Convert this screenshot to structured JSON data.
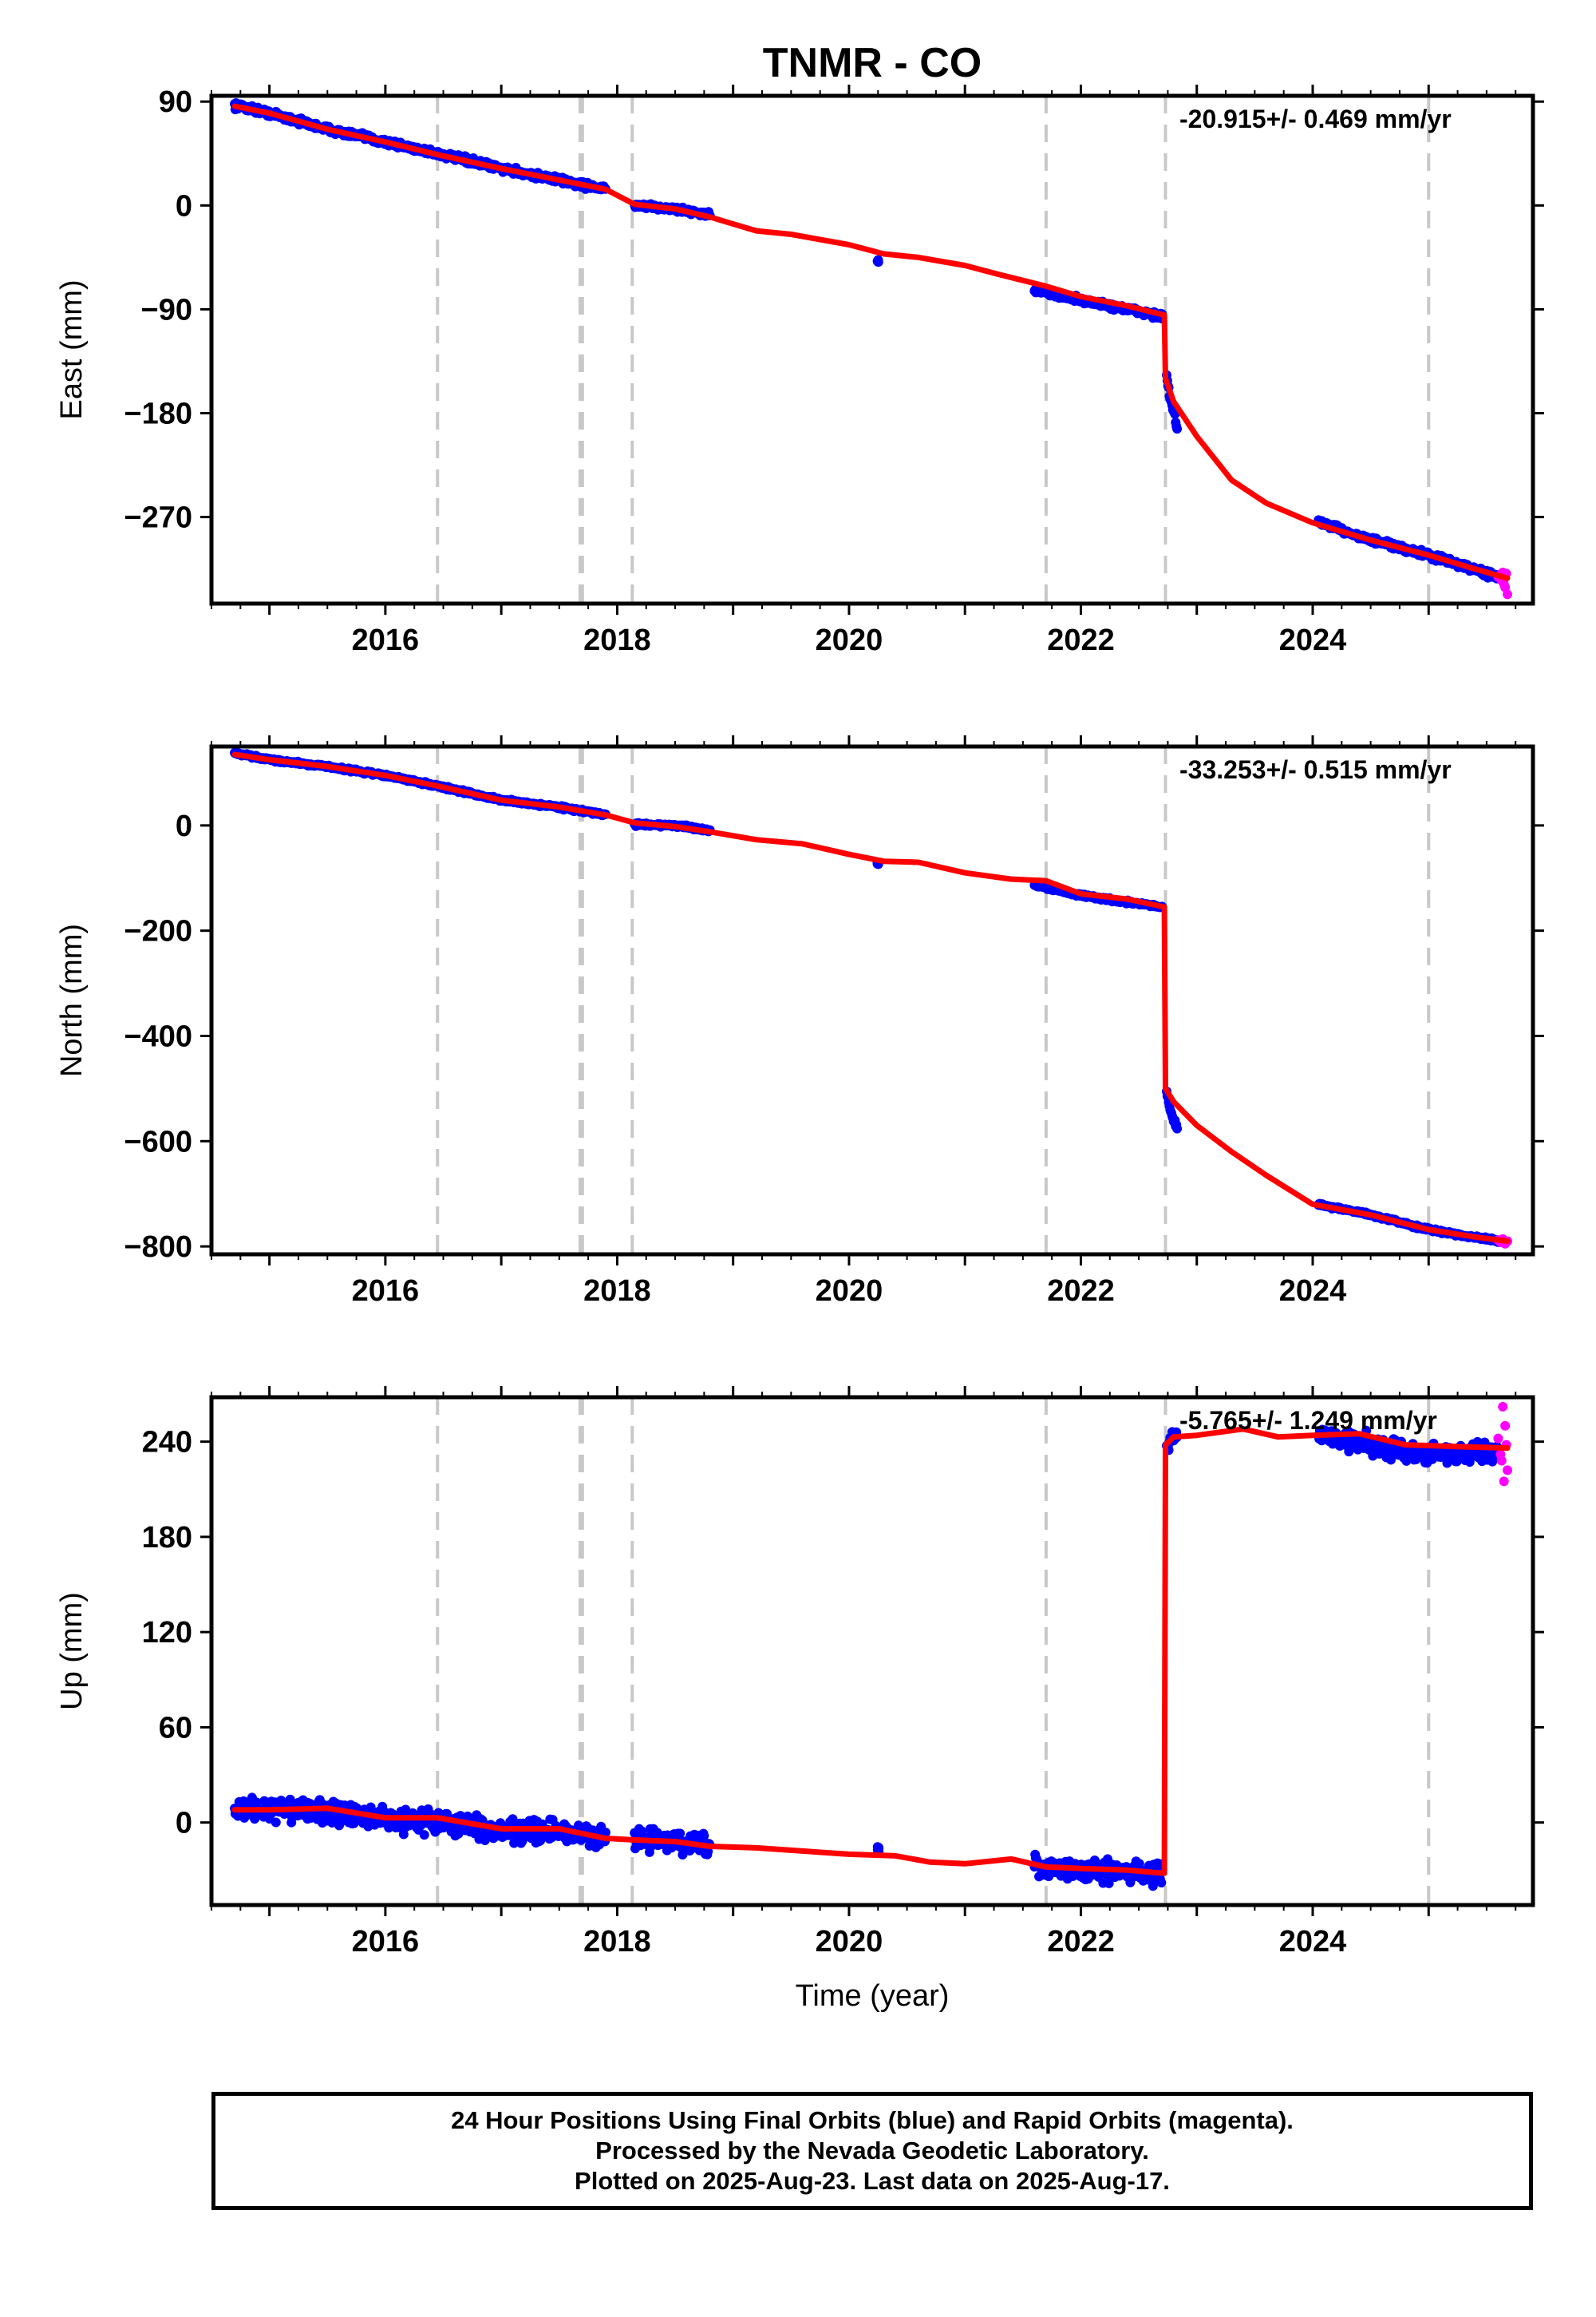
{
  "title": "TNMR - CO",
  "footer": {
    "line1": "24 Hour Positions Using Final Orbits (blue) and Rapid Orbits (magenta).",
    "line2": "Processed by the Nevada Geodetic Laboratory.",
    "line3": "Plotted on 2025-Aug-23. Last data on 2025-Aug-17."
  },
  "colors": {
    "final_orbits": "#0000ff",
    "rapid_orbits": "#ff00ff",
    "model": "#ff0000",
    "event_lines": "#c8c8c8"
  },
  "chart_data": [
    {
      "type": "scatter",
      "component": "East",
      "ylabel": "East (mm)",
      "xlabel": "",
      "rate_label": "-20.915+/- 0.469 mm/yr",
      "xlim": [
        2014.5,
        2025.9
      ],
      "ylim": [
        -345,
        95
      ],
      "xticks": [
        2016,
        2018,
        2020,
        2022,
        2024
      ],
      "yticks": [
        90,
        0,
        -90,
        -180,
        -270
      ],
      "event_lines": [
        2016.45,
        2017.68,
        2017.7,
        2018.13,
        2021.7,
        2022.73,
        2025.0
      ],
      "final_segments": [
        {
          "x": [
            2014.7,
            2015.0,
            2015.5,
            2016.0,
            2016.45,
            2017.0,
            2017.5,
            2017.9
          ],
          "y": [
            87,
            80,
            66,
            55,
            45,
            32,
            22,
            14
          ],
          "noise": 4
        },
        {
          "x": [
            2018.15,
            2018.5,
            2018.8
          ],
          "y": [
            0,
            -3,
            -8
          ],
          "noise": 3
        },
        {
          "x": [
            2020.25
          ],
          "y": [
            -48
          ],
          "noise": 2
        },
        {
          "x": [
            2021.6,
            2022.0,
            2022.7
          ],
          "y": [
            -73,
            -82,
            -96
          ],
          "noise": 4
        },
        {
          "x": [
            2022.74,
            2022.77,
            2022.8,
            2022.83
          ],
          "y": [
            -148,
            -168,
            -178,
            -193
          ],
          "noise": 5
        },
        {
          "x": [
            2024.05,
            2024.5,
            2025.0,
            2025.6
          ],
          "y": [
            -274,
            -290,
            -303,
            -322
          ],
          "noise": 4
        }
      ],
      "rapid_points": {
        "x": [
          2025.6,
          2025.62,
          2025.63,
          2025.64,
          2025.65,
          2025.66,
          2025.67,
          2025.68
        ],
        "y": [
          -322,
          -320,
          -325,
          -318,
          -328,
          -331,
          -319,
          -337
        ]
      },
      "model": {
        "x": [
          2014.7,
          2015.0,
          2015.5,
          2016.0,
          2016.45,
          2017.0,
          2017.5,
          2017.9,
          2018.15,
          2018.5,
          2018.8,
          2019.2,
          2019.5,
          2020.0,
          2020.3,
          2020.6,
          2021.0,
          2021.3,
          2021.7,
          2022.0,
          2022.4,
          2022.72,
          2022.73,
          2022.8,
          2023.0,
          2023.3,
          2023.6,
          2024.0,
          2024.5,
          2025.0,
          2025.4,
          2025.68
        ],
        "y": [
          86,
          80,
          66,
          55,
          44,
          32,
          22,
          14,
          1,
          -3,
          -10,
          -22,
          -25,
          -34,
          -42,
          -45,
          -52,
          -60,
          -70,
          -79,
          -87,
          -95,
          -150,
          -170,
          -200,
          -238,
          -258,
          -275,
          -290,
          -303,
          -315,
          -323
        ]
      }
    },
    {
      "type": "scatter",
      "component": "North",
      "ylabel": "North (mm)",
      "xlabel": "",
      "rate_label": "-33.253+/- 0.515 mm/yr",
      "xlim": [
        2014.5,
        2025.9
      ],
      "ylim": [
        -815,
        150
      ],
      "xticks": [
        2016,
        2018,
        2020,
        2022,
        2024
      ],
      "yticks": [
        0,
        -200,
        -400,
        -600,
        -800
      ],
      "event_lines": [
        2016.45,
        2017.68,
        2017.7,
        2018.13,
        2021.7,
        2022.73,
        2025.0
      ],
      "final_segments": [
        {
          "x": [
            2014.7,
            2015.0,
            2015.5,
            2016.0,
            2016.45,
            2017.0,
            2017.5,
            2017.9
          ],
          "y": [
            137,
            125,
            112,
            95,
            75,
            48,
            35,
            20
          ],
          "noise": 4
        },
        {
          "x": [
            2018.15,
            2018.5,
            2018.8
          ],
          "y": [
            2,
            0,
            -10
          ],
          "noise": 4
        },
        {
          "x": [
            2020.25
          ],
          "y": [
            -72
          ],
          "noise": 3
        },
        {
          "x": [
            2021.6,
            2022.0,
            2022.7
          ],
          "y": [
            -113,
            -133,
            -155
          ],
          "noise": 4
        },
        {
          "x": [
            2022.74,
            2022.77,
            2022.8,
            2022.83
          ],
          "y": [
            -505,
            -540,
            -558,
            -575
          ],
          "noise": 6
        },
        {
          "x": [
            2024.05,
            2024.5,
            2025.0,
            2025.6
          ],
          "y": [
            -720,
            -740,
            -768,
            -790
          ],
          "noise": 4
        }
      ],
      "rapid_points": {
        "x": [
          2025.6,
          2025.62,
          2025.64,
          2025.66,
          2025.68
        ],
        "y": [
          -788,
          -792,
          -786,
          -795,
          -790
        ]
      },
      "model": {
        "x": [
          2014.7,
          2015.0,
          2015.5,
          2016.0,
          2016.45,
          2017.0,
          2017.5,
          2017.9,
          2018.15,
          2018.5,
          2018.8,
          2019.2,
          2019.6,
          2020.0,
          2020.3,
          2020.6,
          2021.0,
          2021.4,
          2021.7,
          2022.0,
          2022.4,
          2022.72,
          2022.73,
          2022.8,
          2023.0,
          2023.3,
          2023.6,
          2024.0,
          2024.5,
          2025.0,
          2025.4,
          2025.68
        ],
        "y": [
          135,
          125,
          112,
          95,
          75,
          48,
          35,
          20,
          5,
          -2,
          -12,
          -27,
          -35,
          -55,
          -68,
          -70,
          -90,
          -102,
          -105,
          -130,
          -140,
          -155,
          -500,
          -525,
          -570,
          -620,
          -665,
          -720,
          -740,
          -768,
          -782,
          -790
        ]
      }
    },
    {
      "type": "scatter",
      "component": "Up",
      "ylabel": "Up (mm)",
      "xlabel": "Time (year)",
      "rate_label": "-5.765+/- 1.249 mm/yr",
      "xlim": [
        2014.5,
        2025.9
      ],
      "ylim": [
        -52,
        268
      ],
      "xticks": [
        2016,
        2018,
        2020,
        2022,
        2024
      ],
      "yticks": [
        240,
        180,
        120,
        60,
        0
      ],
      "event_lines": [
        2016.45,
        2017.68,
        2017.7,
        2018.13,
        2021.7,
        2022.73,
        2025.0
      ],
      "final_segments": [
        {
          "x": [
            2014.7,
            2015.0,
            2015.5,
            2016.0,
            2016.45,
            2017.0,
            2017.5,
            2017.9
          ],
          "y": [
            9,
            8,
            7,
            2,
            1,
            -5,
            -6,
            -10
          ],
          "noise": 10
        },
        {
          "x": [
            2018.15,
            2018.5,
            2018.8
          ],
          "y": [
            -10,
            -12,
            -15
          ],
          "noise": 10
        },
        {
          "x": [
            2020.25
          ],
          "y": [
            -17
          ],
          "noise": 4
        },
        {
          "x": [
            2021.6,
            2022.0,
            2022.7
          ],
          "y": [
            -28,
            -30,
            -32
          ],
          "noise": 9
        },
        {
          "x": [
            2022.74,
            2022.77,
            2022.8,
            2022.83
          ],
          "y": [
            235,
            240,
            244,
            242
          ],
          "noise": 6
        },
        {
          "x": [
            2024.05,
            2024.5,
            2025.0,
            2025.6
          ],
          "y": [
            245,
            238,
            232,
            234
          ],
          "noise": 9
        }
      ],
      "rapid_points": {
        "x": [
          2025.6,
          2025.62,
          2025.63,
          2025.64,
          2025.65,
          2025.66,
          2025.67,
          2025.68
        ],
        "y": [
          242,
          232,
          228,
          262,
          215,
          250,
          238,
          222
        ]
      },
      "model": {
        "x": [
          2014.7,
          2015.0,
          2015.5,
          2016.0,
          2016.45,
          2017.0,
          2017.5,
          2017.9,
          2018.15,
          2018.5,
          2018.8,
          2019.2,
          2019.6,
          2020.0,
          2020.4,
          2020.7,
          2021.0,
          2021.4,
          2021.7,
          2022.0,
          2022.4,
          2022.72,
          2022.73,
          2022.8,
          2023.0,
          2023.4,
          2023.7,
          2024.0,
          2024.4,
          2024.8,
          2025.2,
          2025.68
        ],
        "y": [
          8,
          8,
          9,
          3,
          3,
          -4,
          -4,
          -10,
          -11,
          -12,
          -15,
          -16,
          -18,
          -20,
          -21,
          -25,
          -26,
          -23,
          -28,
          -29,
          -30,
          -32,
          238,
          243,
          244,
          248,
          243,
          244,
          245,
          238,
          237,
          236
        ]
      }
    }
  ]
}
